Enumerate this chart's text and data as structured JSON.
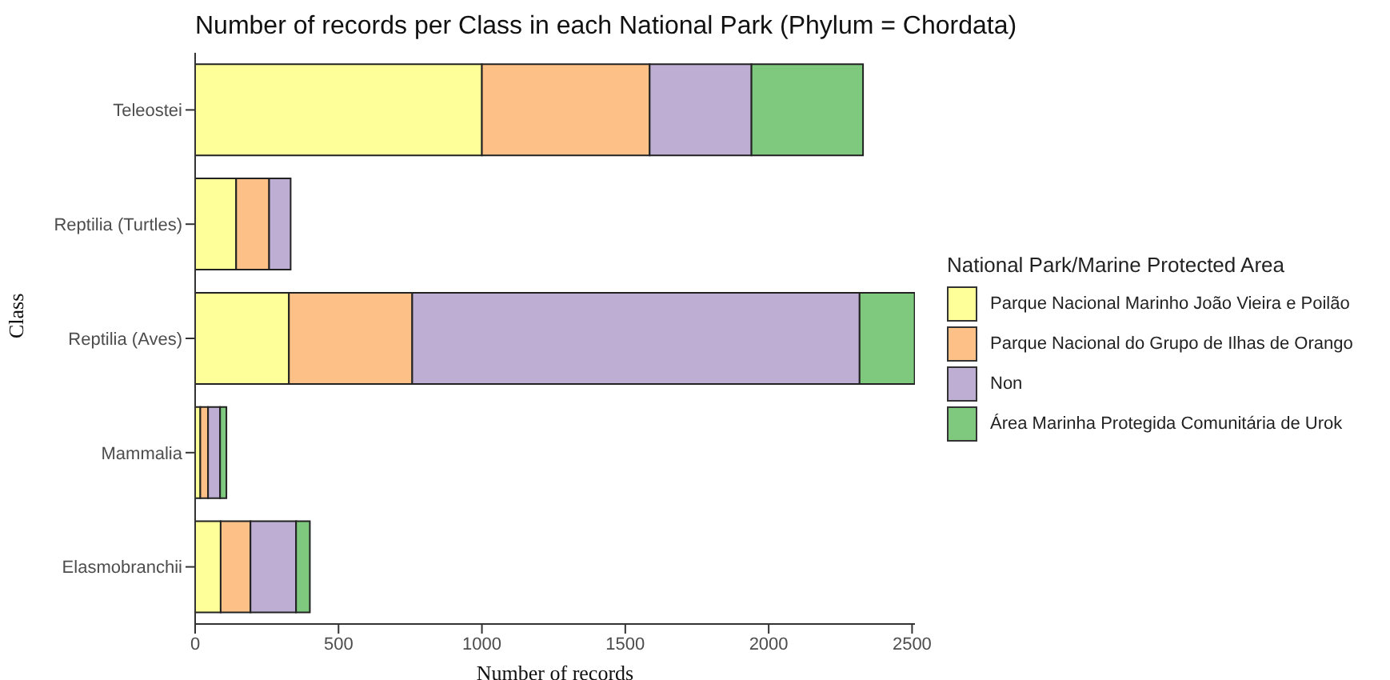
{
  "chart_data": {
    "type": "bar",
    "orientation": "horizontal",
    "stacked": true,
    "title": "Number of records per Class in each National Park (Phylum = Chordata)",
    "xlabel": "Number of records",
    "ylabel": "Class",
    "legend_title": "National Park/Marine Protected Area",
    "legend": "right",
    "grid": false,
    "categories": [
      "Teleostei",
      "Reptilia (Turtles)",
      "Reptilia (Aves)",
      "Mammalia",
      "Elasmobranchii"
    ],
    "xlim": [
      0,
      2510
    ],
    "xticks": [
      0,
      500,
      1000,
      1500,
      2000,
      2500
    ],
    "series": [
      {
        "name": "Parque Nacional Marinho João Vieira e Poilão",
        "color": "#ffff99",
        "values": [
          1000,
          143,
          327,
          18,
          89
        ]
      },
      {
        "name": "Parque Nacional do Grupo de Ilhas de Orango",
        "color": "#fdc086",
        "values": [
          585,
          115,
          430,
          27,
          104
        ]
      },
      {
        "name": "Non",
        "color": "#beaed4",
        "values": [
          355,
          75,
          1560,
          42,
          159
        ]
      },
      {
        "name": "Área Marinha Protegida Comunitária de Urok",
        "color": "#7fc97f",
        "values": [
          389,
          null,
          192,
          22,
          48
        ]
      }
    ]
  }
}
